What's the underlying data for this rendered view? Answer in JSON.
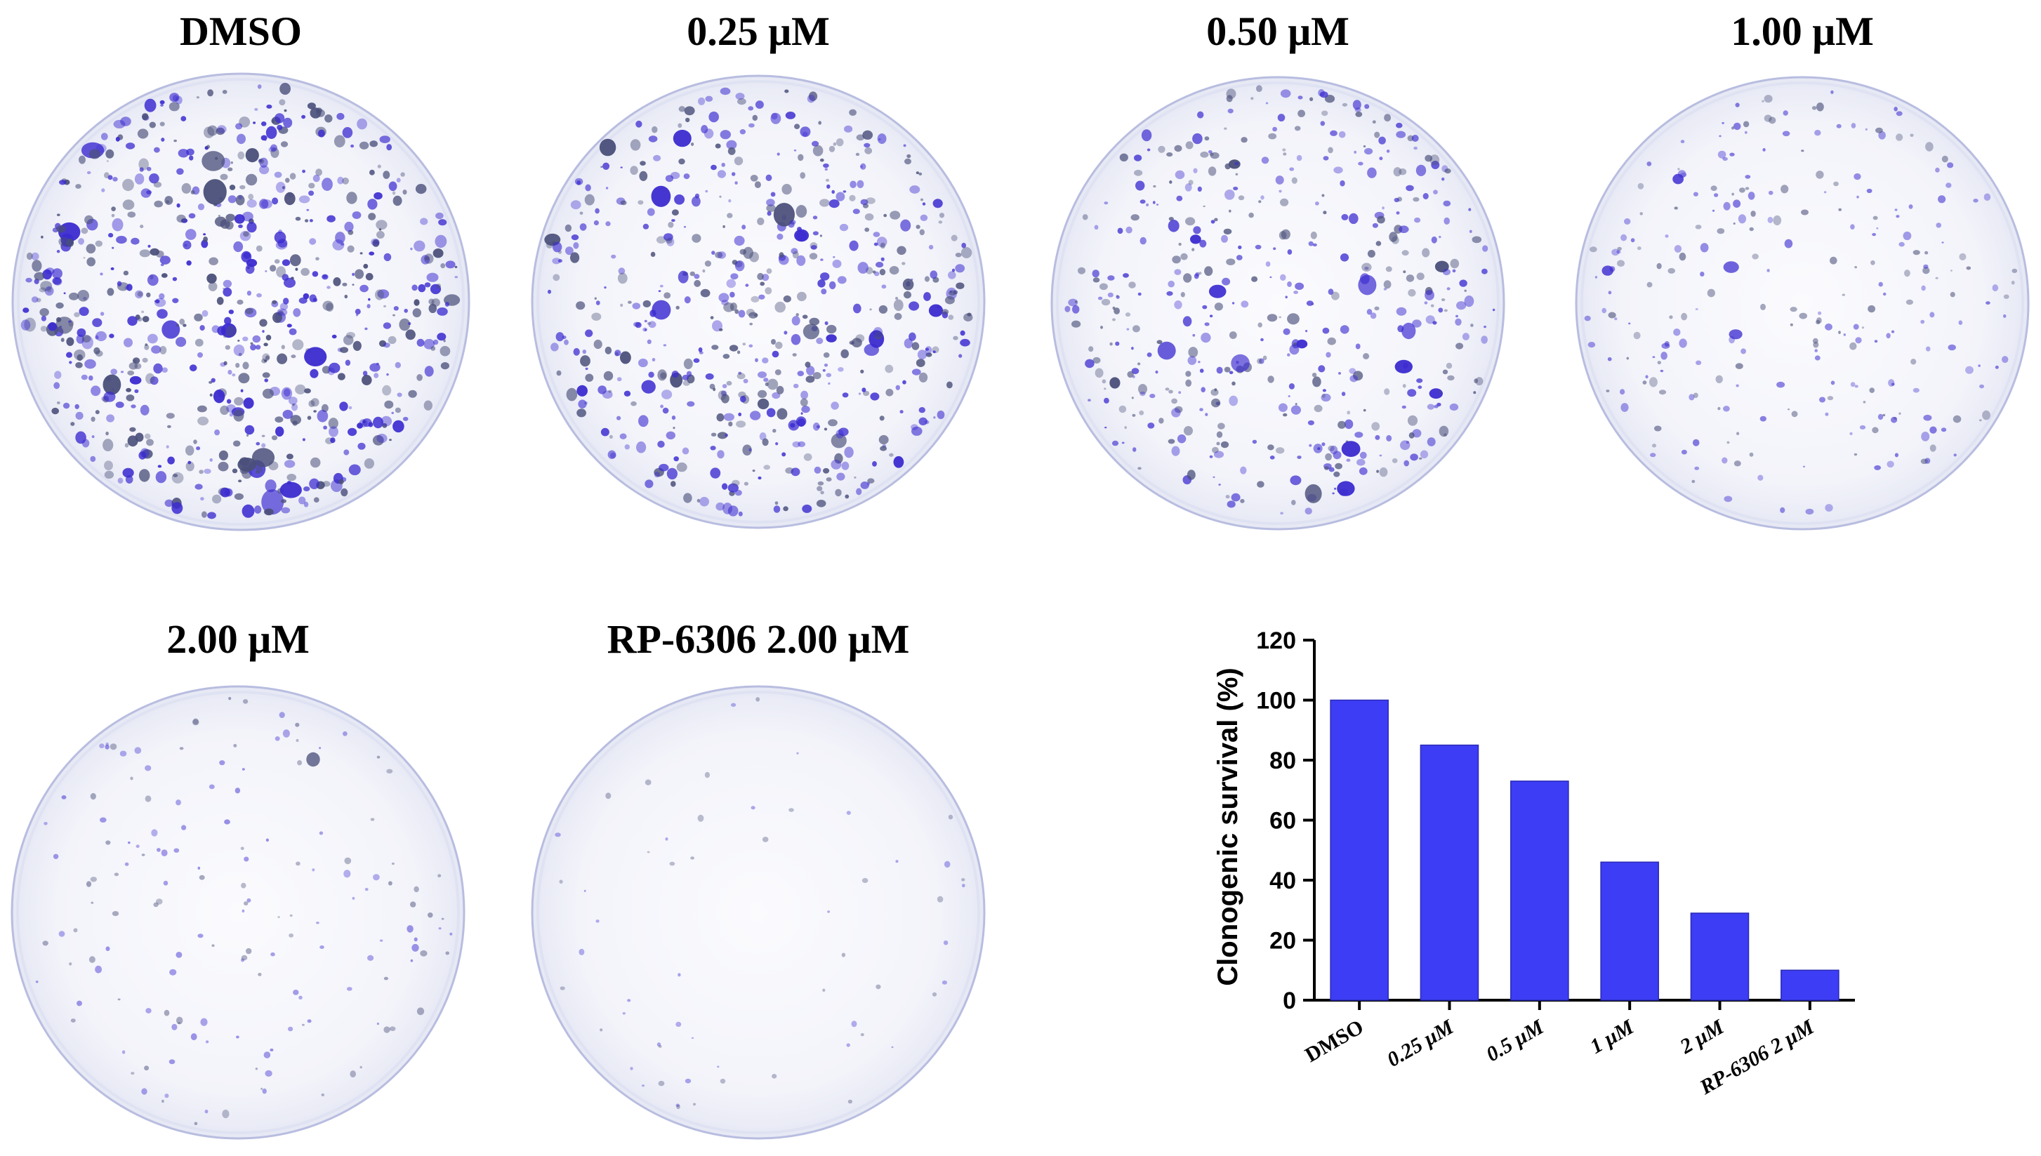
{
  "panels": [
    {
      "title": "DMSO",
      "density": 1.0
    },
    {
      "title": "0.25 μM",
      "density": 0.85
    },
    {
      "title": "0.50 μM",
      "density": 0.73
    },
    {
      "title": "1.00 μM",
      "density": 0.46
    },
    {
      "title": "2.00 μM",
      "density": 0.29
    },
    {
      "title": "RP-6306 2.00 μM",
      "density": 0.1
    }
  ],
  "colors": {
    "bar": "#3d3df5",
    "colony": "#3b2bd0",
    "colony_dark": "#4a4f7a",
    "dish_rim": "#b8bde0",
    "dish_fill": "#f6f7fc"
  },
  "chart_data": {
    "type": "bar",
    "categories": [
      "DMSO",
      "0.25 μM",
      "0.5 μM",
      "1 μM",
      "2 μM",
      "RP-6306 2 μM"
    ],
    "values": [
      100,
      85,
      73,
      46,
      29,
      10
    ],
    "title": "",
    "xlabel": "",
    "ylabel": "Clonogenic survival (%)",
    "ylim": [
      0,
      120
    ],
    "yticks": [
      0,
      20,
      40,
      60,
      80,
      100,
      120
    ],
    "grid": false,
    "legend": "none"
  }
}
